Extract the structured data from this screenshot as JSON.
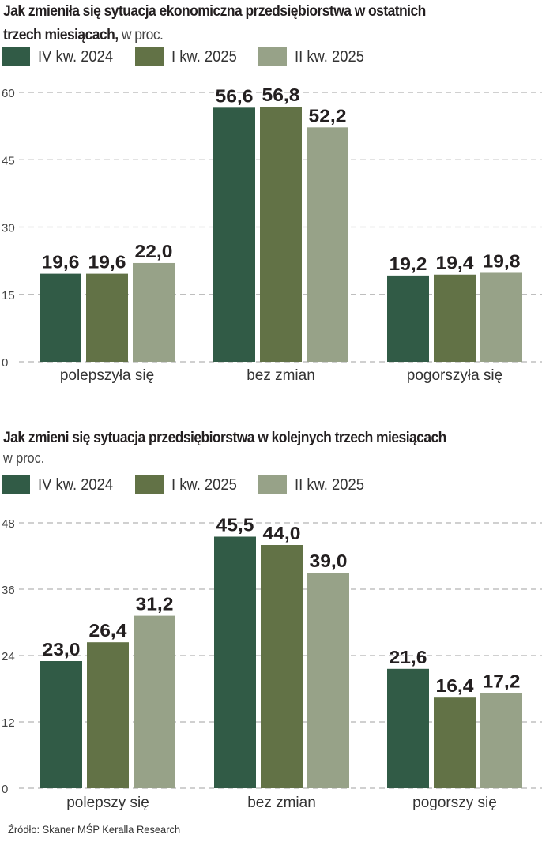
{
  "colors": {
    "series": [
      "#315b46",
      "#627246",
      "#97a288"
    ],
    "grid": "#b5b5b5",
    "value_label": "#231f20",
    "tick_label": "#444444"
  },
  "chart_data": [
    {
      "type": "bar",
      "title": "Jak zmieniła się sytuacja ekonomiczna przedsiębiorstwa w ostatnich trzech miesiącach,",
      "title_line1": "Jak zmieniła się sytuacja ekonomiczna przedsiębiorstwa w ostatnich",
      "title_line2": "trzech miesiącach,",
      "unit": "w proc.",
      "xlabel": "",
      "ylabel": "",
      "categories": [
        "polepszyła się",
        "bez zmian",
        "pogorszyła się"
      ],
      "series": [
        {
          "name": "IV kw. 2024",
          "values": [
            19.6,
            56.6,
            19.2
          ],
          "labels": [
            "19,6",
            "56,6",
            "19,2"
          ]
        },
        {
          "name": "I kw. 2025",
          "values": [
            19.6,
            56.8,
            19.4
          ],
          "labels": [
            "19,6",
            "56,8",
            "19,4"
          ]
        },
        {
          "name": "II kw. 2025",
          "values": [
            22.0,
            52.2,
            19.8
          ],
          "labels": [
            "22,0",
            "52,2",
            "19,8"
          ]
        }
      ],
      "ylim": [
        0,
        60
      ],
      "yticks": [
        0,
        15,
        30,
        45,
        60
      ],
      "grid": true,
      "legend": "top-left"
    },
    {
      "type": "bar",
      "title": "Jak zmieni się sytuacja przedsiębiorstwa w kolejnych trzech miesiącach",
      "unit": "w proc.",
      "xlabel": "",
      "ylabel": "",
      "categories": [
        "polepszy się",
        "bez zmian",
        "pogorszy się"
      ],
      "series": [
        {
          "name": "IV kw. 2024",
          "values": [
            23.0,
            45.5,
            21.6
          ],
          "labels": [
            "23,0",
            "45,5",
            "21,6"
          ]
        },
        {
          "name": "I kw. 2025",
          "values": [
            26.4,
            44.0,
            16.4
          ],
          "labels": [
            "26,4",
            "44,0",
            "16,4"
          ]
        },
        {
          "name": "II kw. 2025",
          "values": [
            31.2,
            39.0,
            17.2
          ],
          "labels": [
            "31,2",
            "39,0",
            "17,2"
          ]
        }
      ],
      "ylim": [
        0,
        48
      ],
      "yticks": [
        0,
        12,
        24,
        36,
        48
      ],
      "grid": true,
      "legend": "top-left"
    }
  ],
  "source": "Źródło: Skaner MŚP Keralla Research"
}
